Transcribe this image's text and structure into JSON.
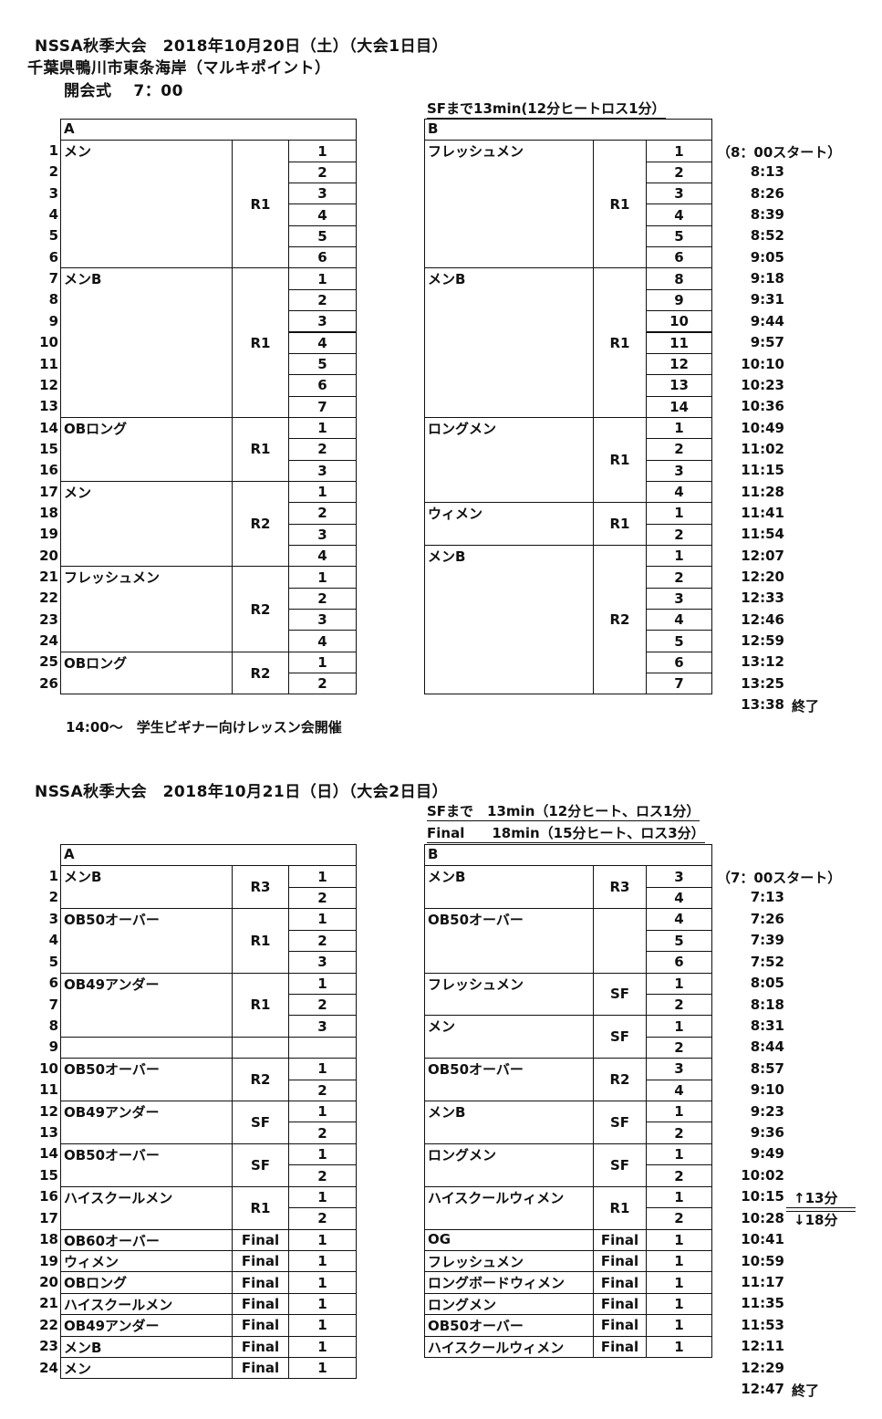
{
  "day1": {
    "title": "NSSA秋季大会　2018年10月20日（土）（大会1日目）",
    "location": "千葉県鴨川市東条海岸（マルキポイント）",
    "opening": "開会式　 7：00",
    "notes": [
      "SFまで13min(12分ヒートロス1分）"
    ],
    "tableA": {
      "header": "A",
      "groups": [
        {
          "label": "メン",
          "round": "R1",
          "heats": [
            "1",
            "2",
            "3",
            "4",
            "5",
            "6"
          ]
        },
        {
          "label": "メンB",
          "round": "R1",
          "heats": [
            "1",
            "2",
            "3",
            "4",
            "5",
            "6",
            "7"
          ]
        },
        {
          "label": "OBロング",
          "round": "R1",
          "heats": [
            "1",
            "2",
            "3"
          ]
        },
        {
          "label": "メン",
          "round": "R2",
          "heats": [
            "1",
            "2",
            "3",
            "4"
          ]
        },
        {
          "label": "フレッシュメン",
          "round": "R2",
          "heats": [
            "1",
            "2",
            "3",
            "4"
          ]
        },
        {
          "label": "OBロング",
          "round": "R2",
          "heats": [
            "1",
            "2"
          ]
        }
      ]
    },
    "tableB": {
      "header": "B",
      "groups": [
        {
          "label": "フレッシュメン",
          "round": "R1",
          "heats": [
            "1",
            "2",
            "3",
            "4",
            "5",
            "6"
          ]
        },
        {
          "label": "メンB",
          "round": "R1",
          "heats": [
            "8",
            "9",
            "10",
            "11",
            "12",
            "13",
            "14"
          ]
        },
        {
          "label": "ロングメン",
          "round": "R1",
          "heats": [
            "1",
            "2",
            "3",
            "4"
          ]
        },
        {
          "label": "ウィメン",
          "round": "R1",
          "heats": [
            "1",
            "2"
          ]
        },
        {
          "label": "メンB",
          "round": "R2",
          "heats": [
            "1",
            "2",
            "3",
            "4",
            "5",
            "6",
            "7"
          ]
        }
      ]
    },
    "row_numbers": [
      "1",
      "2",
      "3",
      "4",
      "5",
      "6",
      "7",
      "8",
      "9",
      "10",
      "11",
      "12",
      "13",
      "14",
      "15",
      "16",
      "17",
      "18",
      "19",
      "20",
      "21",
      "22",
      "23",
      "24",
      "25",
      "26"
    ],
    "start": "（8：00スタート）",
    "times": [
      "8:13",
      "8:26",
      "8:39",
      "8:52",
      "9:05",
      "9:18",
      "9:31",
      "9:44",
      "9:57",
      "10:10",
      "10:23",
      "10:36",
      "10:49",
      "11:02",
      "11:15",
      "11:28",
      "11:41",
      "11:54",
      "12:07",
      "12:20",
      "12:33",
      "12:46",
      "12:59",
      "13:12",
      "13:25",
      "13:38"
    ],
    "end_label": "終了",
    "footer": "14:00～　学生ビギナー向けレッスン会開催"
  },
  "day2": {
    "title": "NSSA秋季大会　2018年10月21日（日）（大会2日目）",
    "notes": [
      "SFまで　13min（12分ヒート、ロス1分）",
      "Final　　18min（15分ヒート、ロス3分）"
    ],
    "tableA": {
      "header": "A",
      "groups": [
        {
          "label": "メンB",
          "round": "R3",
          "heats": [
            "1",
            "2"
          ]
        },
        {
          "label": "OB50オーバー",
          "round": "R1",
          "heats": [
            "1",
            "2",
            "3"
          ]
        },
        {
          "label": "OB49アンダー",
          "round": "R1",
          "heats": [
            "1",
            "2",
            "3"
          ]
        },
        {
          "label": "",
          "round": "",
          "heats": [
            ""
          ]
        },
        {
          "label": "OB50オーバー",
          "round": "R2",
          "heats": [
            "1",
            "2"
          ]
        },
        {
          "label": "OB49アンダー",
          "round": "SF",
          "heats": [
            "1",
            "2"
          ]
        },
        {
          "label": "OB50オーバー",
          "round": "SF",
          "heats": [
            "1",
            "2"
          ]
        },
        {
          "label": "ハイスクールメン",
          "round": "R1",
          "heats": [
            "1",
            "2"
          ]
        },
        {
          "label": "OB60オーバー",
          "round": "Final",
          "heats": [
            "1"
          ]
        },
        {
          "label": "ウィメン",
          "round": "Final",
          "heats": [
            "1"
          ]
        },
        {
          "label": "OBロング",
          "round": "Final",
          "heats": [
            "1"
          ]
        },
        {
          "label": "ハイスクールメン",
          "round": "Final",
          "heats": [
            "1"
          ]
        },
        {
          "label": "OB49アンダー",
          "round": "Final",
          "heats": [
            "1"
          ]
        },
        {
          "label": "メンB",
          "round": "Final",
          "heats": [
            "1"
          ]
        },
        {
          "label": "メン",
          "round": "Final",
          "heats": [
            "1"
          ]
        }
      ]
    },
    "tableB": {
      "header": "B",
      "groups": [
        {
          "label": "メンB",
          "round": "R3",
          "heats": [
            "3",
            "4"
          ]
        },
        {
          "label": "OB50オーバー",
          "round": "",
          "heats": [
            "4",
            "5",
            "6"
          ]
        },
        {
          "label": "フレッシュメン",
          "round": "SF",
          "heats": [
            "1",
            "2"
          ]
        },
        {
          "label": "メン",
          "round": "SF",
          "heats": [
            "1",
            "2"
          ]
        },
        {
          "label": "OB50オーバー",
          "round": "R2",
          "heats": [
            "3",
            "4"
          ]
        },
        {
          "label": "メンB",
          "round": "SF",
          "heats": [
            "1",
            "2"
          ]
        },
        {
          "label": "ロングメン",
          "round": "SF",
          "heats": [
            "1",
            "2"
          ]
        },
        {
          "label": "ハイスクールウィメン",
          "round": "R1",
          "heats": [
            "1",
            "2"
          ]
        },
        {
          "label": "OG",
          "round": "Final",
          "heats": [
            "1"
          ]
        },
        {
          "label": "フレッシュメン",
          "round": "Final",
          "heats": [
            "1"
          ]
        },
        {
          "label": "ロングボードウィメン",
          "round": "Final",
          "heats": [
            "1"
          ]
        },
        {
          "label": "ロングメン",
          "round": "Final",
          "heats": [
            "1"
          ]
        },
        {
          "label": "OB50オーバー",
          "round": "Final",
          "heats": [
            "1"
          ]
        },
        {
          "label": "ハイスクールウィメン",
          "round": "Final",
          "heats": [
            "1"
          ]
        }
      ]
    },
    "row_numbers": [
      "1",
      "2",
      "3",
      "4",
      "5",
      "6",
      "7",
      "8",
      "9",
      "10",
      "11",
      "12",
      "13",
      "14",
      "15",
      "16",
      "17",
      "18",
      "19",
      "20",
      "21",
      "22",
      "23",
      "24"
    ],
    "start": "（7：00スタート）",
    "times": [
      "7:13",
      "7:26",
      "7:39",
      "7:52",
      "8:05",
      "8:18",
      "8:31",
      "8:44",
      "8:57",
      "9:10",
      "9:23",
      "9:36",
      "9:49",
      "10:02",
      "10:15",
      "10:28",
      "10:41",
      "10:59",
      "11:17",
      "11:35",
      "11:53",
      "12:11",
      "12:29",
      "12:47"
    ],
    "end_label": "終了",
    "interval_sf": "↑13分",
    "interval_final": "↓18分"
  }
}
